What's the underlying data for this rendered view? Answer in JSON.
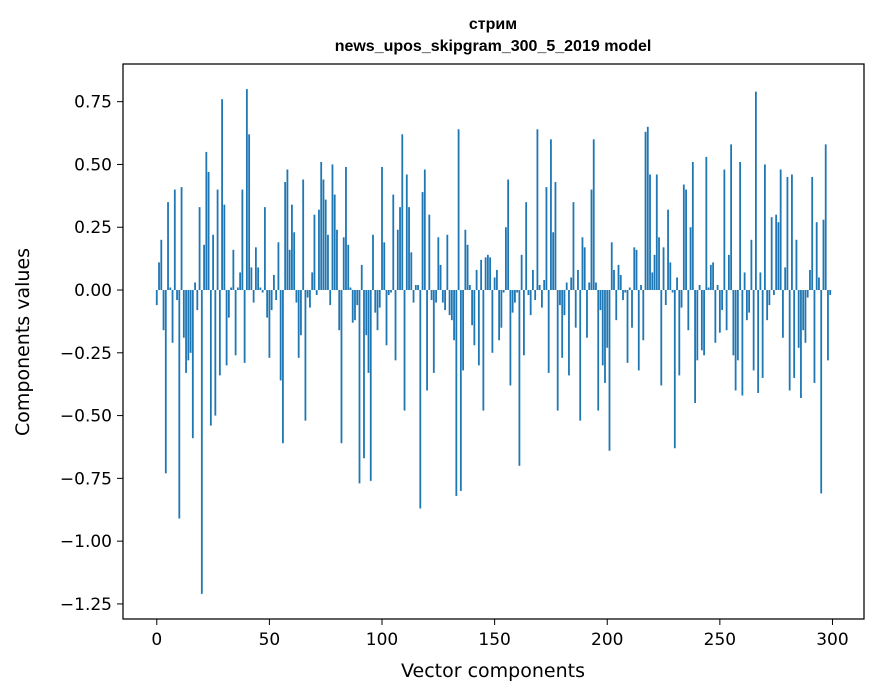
{
  "chart_data": {
    "type": "bar",
    "title_lines": [
      "стрим",
      "news_upos_skipgram_300_5_2019 model"
    ],
    "xlabel": "Vector components",
    "ylabel": "Components values",
    "xlim": [
      -15,
      314
    ],
    "ylim": [
      -1.31,
      0.9
    ],
    "xticks": [
      0,
      50,
      100,
      150,
      200,
      250,
      300
    ],
    "xtick_labels": [
      "0",
      "50",
      "100",
      "150",
      "200",
      "250",
      "300"
    ],
    "yticks": [
      -1.25,
      -1.0,
      -0.75,
      -0.5,
      -0.25,
      0.0,
      0.25,
      0.5,
      0.75
    ],
    "ytick_labels": [
      "−1.25",
      "−1.00",
      "−0.75",
      "−0.50",
      "−0.25",
      "0.00",
      "0.25",
      "0.50",
      "0.75"
    ],
    "color": "#1f77b4",
    "grid": false,
    "values": [
      -0.06,
      0.11,
      0.2,
      -0.16,
      -0.73,
      0.35,
      0.01,
      -0.21,
      0.4,
      -0.04,
      -0.91,
      0.41,
      -0.19,
      -0.33,
      -0.28,
      -0.25,
      -0.59,
      0.03,
      -0.08,
      0.33,
      -1.21,
      0.18,
      0.55,
      0.47,
      -0.54,
      0.22,
      -0.5,
      0.4,
      -0.34,
      0.76,
      0.34,
      -0.3,
      -0.11,
      0.01,
      0.16,
      -0.26,
      0.01,
      0.07,
      0.4,
      -0.29,
      0.8,
      0.62,
      0.09,
      -0.05,
      0.17,
      0.09,
      0.01,
      -0.01,
      0.33,
      -0.11,
      -0.27,
      -0.08,
      0.06,
      -0.04,
      0.19,
      -0.36,
      -0.61,
      0.43,
      0.48,
      0.16,
      0.34,
      0.23,
      -0.05,
      -0.27,
      -0.18,
      0.44,
      -0.52,
      -0.03,
      -0.07,
      0.07,
      0.3,
      -0.02,
      0.32,
      0.51,
      0.44,
      0.36,
      0.22,
      -0.06,
      0.5,
      0.38,
      0.24,
      -0.16,
      -0.61,
      0.21,
      0.49,
      0.18,
      0.01,
      -0.13,
      -0.12,
      -0.06,
      -0.77,
      0.1,
      -0.67,
      -0.18,
      -0.33,
      -0.76,
      0.22,
      -0.09,
      -0.16,
      -0.07,
      0.49,
      0.19,
      -0.22,
      -0.02,
      -0.01,
      0.38,
      -0.28,
      0.24,
      0.33,
      0.62,
      -0.48,
      0.46,
      0.33,
      0.15,
      -0.05,
      0.02,
      0.02,
      -0.87,
      0.39,
      0.48,
      -0.4,
      0.3,
      -0.04,
      -0.33,
      -0.05,
      0.21,
      0.1,
      -0.05,
      -0.08,
      0.22,
      -0.1,
      -0.12,
      -0.2,
      -0.82,
      0.64,
      -0.8,
      -0.32,
      0.24,
      0.18,
      0.02,
      -0.14,
      -0.22,
      0.08,
      -0.3,
      0.12,
      -0.48,
      0.13,
      0.14,
      0.13,
      -0.25,
      0.05,
      0.08,
      -0.2,
      -0.15,
      -0.01,
      0.25,
      0.44,
      -0.38,
      -0.09,
      -0.05,
      -0.01,
      -0.7,
      0.14,
      -0.26,
      0.35,
      -0.02,
      -0.1,
      0.08,
      -0.04,
      0.64,
      0.02,
      -0.07,
      0.04,
      0.41,
      -0.33,
      0.6,
      0.23,
      0.43,
      -0.48,
      -0.06,
      -0.27,
      -0.1,
      0.03,
      -0.34,
      0.05,
      0.35,
      -0.15,
      0.08,
      -0.52,
      0.21,
      0.17,
      -0.19,
      0.03,
      0.4,
      0.6,
      0.03,
      -0.48,
      -0.08,
      -0.3,
      -0.37,
      -0.23,
      -0.64,
      0.19,
      0.08,
      -0.12,
      0.1,
      0.06,
      -0.04,
      -0.01,
      -0.29,
      0.01,
      -0.15,
      0.17,
      0.16,
      -0.32,
      0.02,
      -0.2,
      0.63,
      0.65,
      0.46,
      0.07,
      0.14,
      0.46,
      0.21,
      -0.38,
      0.17,
      -0.06,
      0.32,
      0.11,
      -0.01,
      -0.63,
      0.05,
      -0.34,
      -0.07,
      0.42,
      0.4,
      -0.16,
      0.25,
      0.51,
      -0.45,
      -0.28,
      0.02,
      -0.24,
      -0.26,
      0.53,
      0.01,
      0.1,
      0.11,
      -0.21,
      0.02,
      -0.17,
      -0.08,
      0.48,
      -0.16,
      0.14,
      0.58,
      -0.26,
      -0.4,
      -0.28,
      0.51,
      -0.42,
      0.07,
      -0.12,
      -0.09,
      0.2,
      -0.32,
      0.79,
      -0.41,
      0.07,
      -0.35,
      0.5,
      -0.12,
      -0.06,
      0.29,
      -0.02,
      0.3,
      0.27,
      0.48,
      -0.19,
      0.09,
      0.45,
      -0.4,
      0.46,
      -0.35,
      0.2,
      -0.23,
      -0.43,
      -0.16,
      -0.21,
      -0.03,
      0.08,
      0.45,
      -0.37,
      0.27,
      0.05,
      -0.81,
      0.28,
      0.58,
      -0.28,
      -0.02
    ]
  }
}
